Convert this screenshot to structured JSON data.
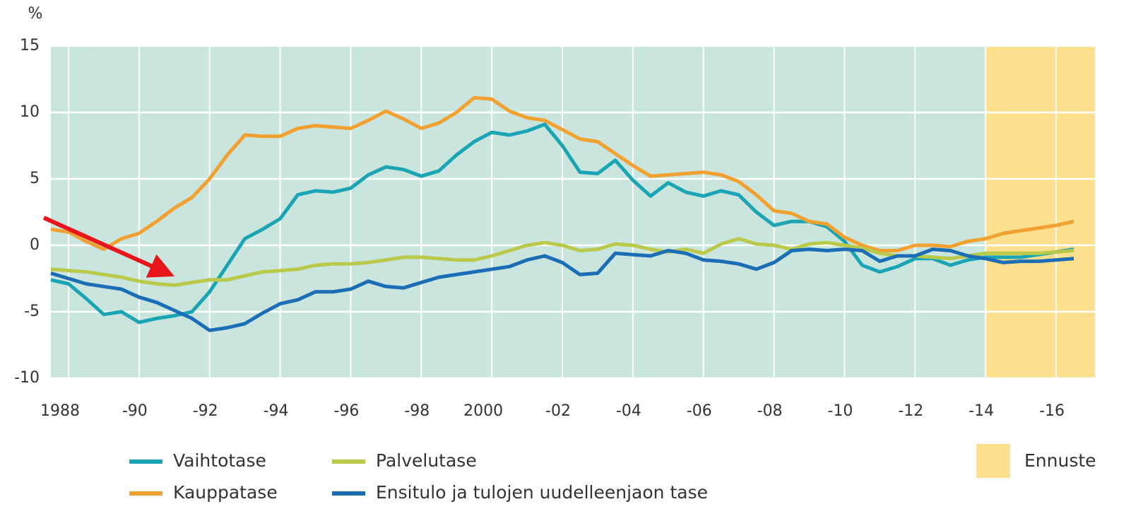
{
  "chart_data": {
    "type": "line",
    "y_unit": "%",
    "x": [
      1987.5,
      1988,
      1988.5,
      1989,
      1989.5,
      1990,
      1990.5,
      1991,
      1991.5,
      1992,
      1992.5,
      1993,
      1993.5,
      1994,
      1994.5,
      1995,
      1995.5,
      1996,
      1996.5,
      1997,
      1997.5,
      1998,
      1998.5,
      1999,
      1999.5,
      2000,
      2000.5,
      2001,
      2001.5,
      2002,
      2002.5,
      2003,
      2003.5,
      2004,
      2004.5,
      2005,
      2005.5,
      2006,
      2006.5,
      2007,
      2007.5,
      2008,
      2008.5,
      2009,
      2009.5,
      2010,
      2010.5,
      2011,
      2011.5,
      2012,
      2012.5,
      2013,
      2013.5,
      2014,
      2014.5,
      2015,
      2015.5,
      2016,
      2016.5
    ],
    "series": [
      {
        "name": "Vaihtotase",
        "color": "#1ba5b4",
        "values": [
          -2.6,
          -2.9,
          -4,
          -5.2,
          -5,
          -5.8,
          -5.5,
          -5.3,
          -5,
          -3.5,
          -1.5,
          0.5,
          1.2,
          2,
          3.8,
          4.1,
          4,
          4.3,
          5.3,
          5.9,
          5.7,
          5.2,
          5.6,
          6.8,
          7.8,
          8.5,
          8.3,
          8.6,
          9.1,
          7.5,
          5.5,
          5.4,
          6.4,
          4.9,
          3.7,
          4.7,
          4,
          3.7,
          4.1,
          3.8,
          2.5,
          1.5,
          1.8,
          1.8,
          1.4,
          0.3,
          -1.5,
          -2,
          -1.6,
          -1,
          -1,
          -1.5,
          -1.1,
          -0.9,
          -0.9,
          -0.9,
          -0.7,
          -0.5,
          -0.3
        ]
      },
      {
        "name": "Kauppatase",
        "color": "#f2a030",
        "values": [
          1.2,
          1,
          0.3,
          -0.3,
          0.5,
          0.9,
          1.8,
          2.8,
          3.6,
          5,
          6.8,
          8.3,
          8.2,
          8.2,
          8.8,
          9,
          8.9,
          8.8,
          9.4,
          10.1,
          9.5,
          8.8,
          9.2,
          10,
          11.1,
          11,
          10.1,
          9.6,
          9.4,
          8.7,
          8,
          7.8,
          6.9,
          6,
          5.2,
          5.3,
          5.4,
          5.5,
          5.3,
          4.8,
          3.8,
          2.6,
          2.4,
          1.8,
          1.6,
          0.6,
          0,
          -0.4,
          -0.4,
          0,
          0,
          -0.1,
          0.3,
          0.5,
          0.9,
          1.1,
          1.3,
          1.5,
          1.8
        ]
      },
      {
        "name": "Palvelutase",
        "color": "#b9c94a",
        "values": [
          -1.8,
          -1.9,
          -2,
          -2.2,
          -2.4,
          -2.7,
          -2.9,
          -3,
          -2.8,
          -2.6,
          -2.6,
          -2.3,
          -2,
          -1.9,
          -1.8,
          -1.5,
          -1.4,
          -1.4,
          -1.3,
          -1.1,
          -0.9,
          -0.9,
          -1,
          -1.1,
          -1.1,
          -0.8,
          -0.4,
          0,
          0.2,
          0,
          -0.4,
          -0.3,
          0.1,
          0,
          -0.3,
          -0.5,
          -0.3,
          -0.6,
          0.1,
          0.5,
          0.1,
          0,
          -0.3,
          0.1,
          0.2,
          0,
          -0.2,
          -0.6,
          -0.8,
          -0.8,
          -0.9,
          -1,
          -0.8,
          -0.6,
          -0.6,
          -0.6,
          -0.6,
          -0.5,
          -0.4
        ]
      },
      {
        "name": "Ensitulo ja tulojen uudelleenjaon tase",
        "color": "#1b6db5",
        "values": [
          -2.1,
          -2.5,
          -2.9,
          -3.1,
          -3.3,
          -3.9,
          -4.3,
          -4.9,
          -5.5,
          -6.4,
          -6.2,
          -5.9,
          -5.1,
          -4.4,
          -4.1,
          -3.5,
          -3.5,
          -3.3,
          -2.7,
          -3.1,
          -3.2,
          -2.8,
          -2.4,
          -2.2,
          -2,
          -1.8,
          -1.6,
          -1.1,
          -0.8,
          -1.3,
          -2.2,
          -2.1,
          -0.6,
          -0.7,
          -0.8,
          -0.4,
          -0.6,
          -1.1,
          -1.2,
          -1.4,
          -1.8,
          -1.3,
          -0.4,
          -0.3,
          -0.4,
          -0.3,
          -0.4,
          -1.2,
          -0.8,
          -0.8,
          -0.3,
          -0.4,
          -0.8,
          -1,
          -1.3,
          -1.2,
          -1.2,
          -1.1,
          -1
        ]
      }
    ],
    "xlim": [
      1987.5,
      2017.1
    ],
    "ylim": [
      -10,
      15
    ],
    "yticks": [
      -10,
      -5,
      0,
      5,
      10,
      15
    ],
    "xticks": [
      1988,
      {
        "value": 1990,
        "label": "-90"
      },
      {
        "value": 1992,
        "label": "-92"
      },
      {
        "value": 1994,
        "label": "-94"
      },
      {
        "value": 1996,
        "label": "-96"
      },
      {
        "value": 1998,
        "label": "-98"
      },
      2000,
      {
        "value": 2002,
        "label": "-02"
      },
      {
        "value": 2004,
        "label": "-04"
      },
      {
        "value": 2006,
        "label": "-06"
      },
      {
        "value": 2008,
        "label": "-08"
      },
      {
        "value": 2010,
        "label": "-10"
      },
      {
        "value": 2012,
        "label": "-12"
      },
      {
        "value": 2014,
        "label": "-14"
      },
      {
        "value": 2016,
        "label": "-16"
      }
    ],
    "grid": true,
    "plot_background": "#c9e5dd",
    "forecast": {
      "start": 2014,
      "label": "Ennuste",
      "color": "#fde08e"
    }
  }
}
